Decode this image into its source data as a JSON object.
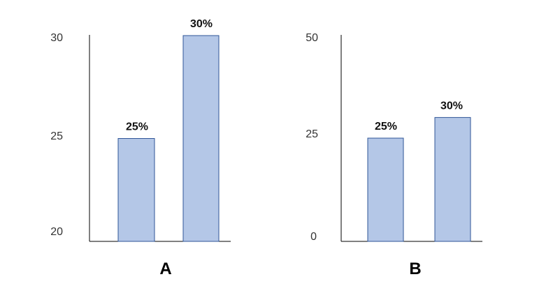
{
  "chart_data": [
    {
      "type": "bar",
      "title": "A",
      "categories": [
        "",
        ""
      ],
      "values": [
        25,
        30
      ],
      "data_labels": [
        "25%",
        "30%"
      ],
      "yticks": [
        "20",
        "25",
        "30"
      ],
      "ylim": [
        20,
        30
      ],
      "grid": false,
      "bar_color": "#b4c7e7",
      "bar_edge_color": "#2f5597"
    },
    {
      "type": "bar",
      "title": "B",
      "categories": [
        "",
        ""
      ],
      "values": [
        25,
        30
      ],
      "data_labels": [
        "25%",
        "30%"
      ],
      "yticks": [
        "0",
        "25",
        "50"
      ],
      "ylim": [
        0,
        50
      ],
      "grid": false,
      "bar_color": "#b4c7e7",
      "bar_edge_color": "#2f5597"
    }
  ]
}
